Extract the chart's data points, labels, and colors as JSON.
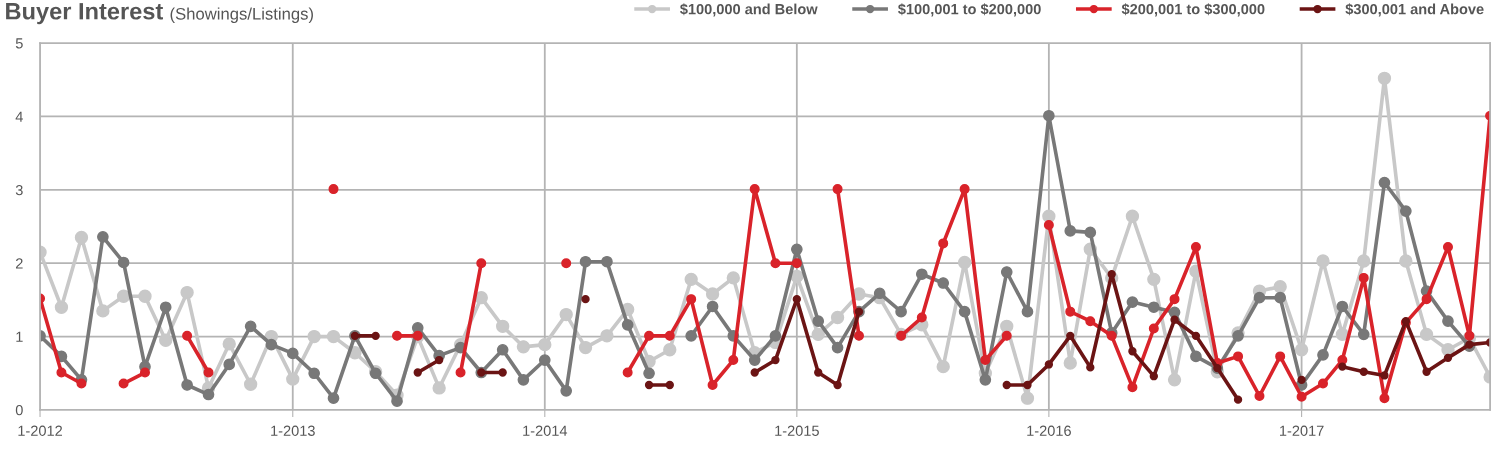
{
  "chart_data": {
    "type": "line",
    "title": "Buyer Interest",
    "subtitle": "(Showings/Listings)",
    "x": [
      "2012-01",
      "2012-02",
      "2012-03",
      "2012-04",
      "2012-05",
      "2012-06",
      "2012-07",
      "2012-08",
      "2012-09",
      "2012-10",
      "2012-11",
      "2012-12",
      "2013-01",
      "2013-02",
      "2013-03",
      "2013-04",
      "2013-05",
      "2013-06",
      "2013-07",
      "2013-08",
      "2013-09",
      "2013-10",
      "2013-11",
      "2013-12",
      "2014-01",
      "2014-02",
      "2014-03",
      "2014-04",
      "2014-05",
      "2014-06",
      "2014-07",
      "2014-08",
      "2014-09",
      "2014-10",
      "2014-11",
      "2014-12",
      "2015-01",
      "2015-02",
      "2015-03",
      "2015-04",
      "2015-05",
      "2015-06",
      "2015-07",
      "2015-08",
      "2015-09",
      "2015-10",
      "2015-11",
      "2015-12",
      "2016-01",
      "2016-02",
      "2016-03",
      "2016-04",
      "2016-05",
      "2016-06",
      "2016-07",
      "2016-08",
      "2016-09",
      "2016-10",
      "2016-11",
      "2016-12",
      "2017-01",
      "2017-02",
      "2017-03",
      "2017-04",
      "2017-05",
      "2017-06",
      "2017-07",
      "2017-08",
      "2017-09",
      "2017-10"
    ],
    "series": [
      {
        "name": "$100,000 and Below",
        "color": "#c8c8c8",
        "values": [
          2.15,
          1.4,
          2.35,
          1.35,
          1.55,
          1.55,
          0.95,
          1.6,
          0.3,
          0.9,
          0.35,
          1.0,
          0.42,
          1.0,
          1.0,
          0.78,
          0.52,
          0.2,
          1.0,
          0.3,
          0.89,
          1.53,
          1.14,
          0.86,
          0.89,
          1.3,
          0.85,
          1.01,
          1.37,
          0.66,
          0.82,
          1.78,
          1.58,
          1.8,
          0.78,
          0.92,
          1.82,
          1.03,
          1.26,
          1.58,
          1.53,
          1.03,
          1.16,
          0.59,
          2.01,
          0.5,
          1.14,
          0.16,
          2.64,
          0.64,
          2.19,
          1.8,
          2.64,
          1.78,
          0.41,
          1.89,
          0.52,
          1.05,
          1.62,
          1.68,
          0.82,
          2.03,
          1.03,
          2.03,
          4.52,
          2.03,
          1.03,
          0.82,
          0.98,
          0.45
        ]
      },
      {
        "name": "$100,001 to $200,000",
        "color": "#787878",
        "values": [
          1.01,
          0.73,
          0.41,
          2.36,
          2.01,
          0.59,
          1.4,
          0.34,
          0.21,
          0.62,
          1.14,
          0.89,
          0.77,
          0.5,
          0.16,
          1.01,
          0.5,
          0.12,
          1.12,
          0.74,
          0.85,
          0.51,
          0.82,
          0.41,
          0.68,
          0.26,
          2.02,
          2.02,
          1.16,
          0.5,
          null,
          1.01,
          1.41,
          1.01,
          0.68,
          1.01,
          2.19,
          1.21,
          0.85,
          1.34,
          1.59,
          1.34,
          1.85,
          1.73,
          1.34,
          0.41,
          1.88,
          1.34,
          4.01,
          2.44,
          2.42,
          1.05,
          1.47,
          1.4,
          1.33,
          0.73,
          0.57,
          1.01,
          1.53,
          1.53,
          0.34,
          0.75,
          1.41,
          1.03,
          3.1,
          2.71,
          1.62,
          1.21,
          0.87,
          null
        ]
      },
      {
        "name": "$200,001 to $300,000",
        "color": "#d9232a",
        "values": [
          1.52,
          0.51,
          0.36,
          null,
          0.36,
          0.51,
          null,
          1.01,
          0.51,
          null,
          null,
          null,
          null,
          null,
          3.01,
          null,
          null,
          1.01,
          1.01,
          null,
          0.51,
          2.0,
          null,
          null,
          null,
          2.0,
          null,
          null,
          0.51,
          1.01,
          1.01,
          1.51,
          0.34,
          0.68,
          3.01,
          2.0,
          2.0,
          null,
          3.01,
          1.01,
          null,
          1.01,
          1.26,
          2.27,
          3.01,
          0.68,
          1.01,
          null,
          2.52,
          1.34,
          1.21,
          1.01,
          0.31,
          1.11,
          1.51,
          2.22,
          0.64,
          0.73,
          0.19,
          0.73,
          0.18,
          0.36,
          0.68,
          1.8,
          0.16,
          1.19,
          1.51,
          2.22,
          1.01,
          4.01
        ]
      },
      {
        "name": "$300,001 and Above",
        "color": "#6b1414",
        "values": [
          null,
          null,
          null,
          null,
          null,
          null,
          null,
          null,
          null,
          null,
          null,
          null,
          null,
          null,
          null,
          1.01,
          1.01,
          null,
          0.51,
          0.68,
          null,
          0.51,
          0.51,
          null,
          null,
          null,
          1.51,
          null,
          null,
          0.34,
          0.34,
          null,
          null,
          null,
          0.51,
          0.68,
          1.51,
          0.51,
          0.34,
          1.34,
          null,
          null,
          null,
          null,
          null,
          null,
          0.34,
          0.34,
          0.62,
          1.01,
          0.58,
          1.85,
          0.8,
          0.46,
          1.23,
          1.01,
          0.57,
          0.14,
          null,
          null,
          0.41,
          null,
          0.59,
          0.52,
          0.47,
          1.21,
          0.52,
          0.71,
          0.89,
          0.92
        ]
      }
    ],
    "xlim": [
      "2012-01",
      "2017-10"
    ],
    "xticks": [
      {
        "value": "2012-01",
        "label": "1-2012"
      },
      {
        "value": "2013-01",
        "label": "1-2013"
      },
      {
        "value": "2014-01",
        "label": "1-2014"
      },
      {
        "value": "2015-01",
        "label": "1-2015"
      },
      {
        "value": "2016-01",
        "label": "1-2016"
      },
      {
        "value": "2017-01",
        "label": "1-2017"
      }
    ],
    "ylim": [
      0,
      5
    ],
    "yticks": [
      0,
      1,
      2,
      3,
      4,
      5
    ],
    "grid": true,
    "legend": "top right",
    "marker": "circle",
    "line_style": "solid"
  }
}
